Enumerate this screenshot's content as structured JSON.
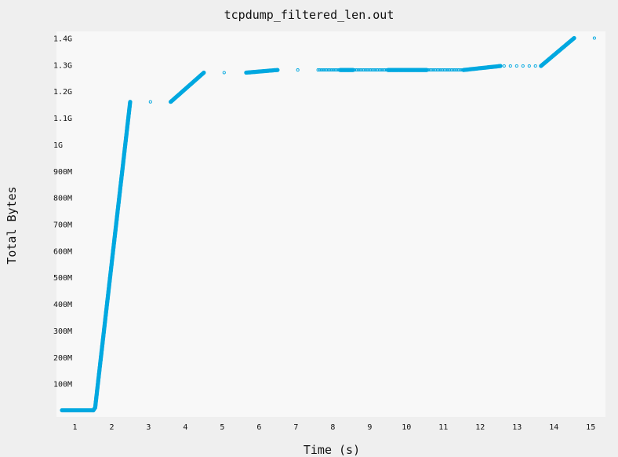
{
  "chart_data": {
    "type": "scatter",
    "title": "tcpdump_filtered_len.out",
    "xlabel": "Time (s)",
    "ylabel": "Total Bytes",
    "xlim": [
      0.5,
      15.4
    ],
    "ylim": [
      -25000000,
      1425000000
    ],
    "grid": false,
    "x_ticks": [
      1,
      2,
      3,
      4,
      5,
      6,
      7,
      8,
      9,
      10,
      11,
      12,
      13,
      14,
      15
    ],
    "x_tick_labels": [
      "1",
      "2",
      "3",
      "4",
      "5",
      "6",
      "7",
      "8",
      "9",
      "10",
      "11",
      "12",
      "13",
      "14",
      "15"
    ],
    "y_ticks": [
      100000000,
      200000000,
      300000000,
      400000000,
      500000000,
      600000000,
      700000000,
      800000000,
      900000000,
      1000000000,
      1100000000,
      1200000000,
      1300000000,
      1400000000
    ],
    "y_tick_labels": [
      "100M",
      "200M",
      "300M",
      "400M",
      "500M",
      "600M",
      "700M",
      "800M",
      "900M",
      "1G",
      "1.1G",
      "1.2G",
      "1.3G",
      "1.4G"
    ],
    "point_color": "#00a8e0",
    "series": [
      {
        "segments": [
          {
            "style": "dense",
            "points": [
              [
                0.65,
                0
              ],
              [
                1.5,
                0
              ]
            ]
          },
          {
            "style": "dense",
            "points": [
              [
                1.5,
                0
              ],
              [
                1.55,
                10000000
              ],
              [
                2.5,
                1160000000
              ]
            ]
          },
          {
            "style": "sparse",
            "points": [
              [
                3.05,
                1160000000
              ]
            ]
          },
          {
            "style": "dense",
            "points": [
              [
                3.6,
                1160000000
              ],
              [
                4.5,
                1270000000
              ]
            ]
          },
          {
            "style": "sparse",
            "points": [
              [
                5.05,
                1270000000
              ]
            ]
          },
          {
            "style": "dense",
            "points": [
              [
                5.65,
                1270000000
              ],
              [
                6.5,
                1280000000
              ]
            ]
          },
          {
            "style": "sparse",
            "points": [
              [
                7.05,
                1280000000
              ]
            ]
          },
          {
            "style": "medium",
            "points": [
              [
                7.6,
                1280000000
              ],
              [
                8.2,
                1280000000
              ]
            ]
          },
          {
            "style": "dense",
            "points": [
              [
                8.2,
                1280000000
              ],
              [
                8.55,
                1280000000
              ]
            ]
          },
          {
            "style": "medium",
            "points": [
              [
                8.55,
                1280000000
              ],
              [
                9.5,
                1280000000
              ]
            ]
          },
          {
            "style": "dense",
            "points": [
              [
                9.5,
                1280000000
              ],
              [
                10.55,
                1280000000
              ]
            ]
          },
          {
            "style": "medium",
            "points": [
              [
                10.55,
                1280000000
              ],
              [
                11.55,
                1280000000
              ]
            ]
          },
          {
            "style": "dense",
            "points": [
              [
                11.55,
                1280000000
              ],
              [
                12.55,
                1295000000
              ]
            ]
          },
          {
            "style": "sparse",
            "points": [
              [
                12.65,
                1295000000
              ],
              [
                13.5,
                1295000000
              ]
            ]
          },
          {
            "style": "dense",
            "points": [
              [
                13.65,
                1295000000
              ],
              [
                14.55,
                1400000000
              ]
            ]
          },
          {
            "style": "sparse",
            "points": [
              [
                15.1,
                1400000000
              ]
            ]
          }
        ]
      }
    ]
  }
}
